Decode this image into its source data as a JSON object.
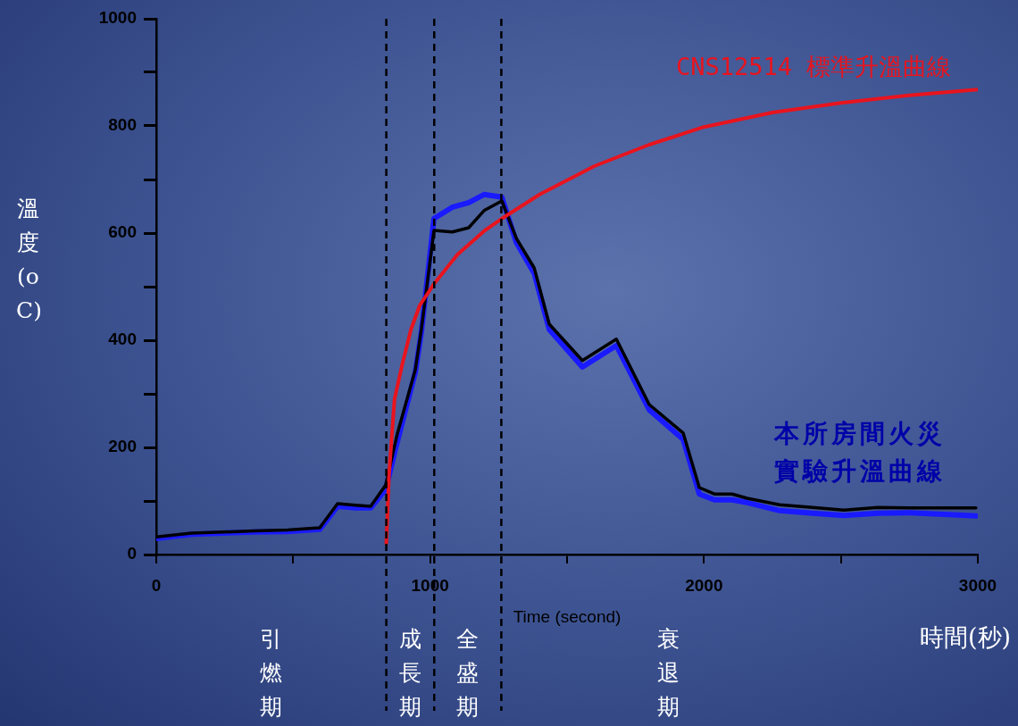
{
  "chart_data": {
    "type": "line",
    "xlabel": "Time (second)",
    "ylabel": "溫度 (oC)",
    "xlim": [
      0,
      3000
    ],
    "xticks": [
      0,
      {
        "value": 500,
        "label": null
      },
      1000,
      {
        "value": 1500,
        "label": null
      },
      2000,
      {
        "value": 2500,
        "label": null
      },
      3000
    ],
    "ylim": [
      0,
      1000
    ],
    "yticks": [
      0,
      {
        "value": 100,
        "label": null
      },
      200,
      {
        "value": 300,
        "label": null
      },
      400,
      {
        "value": 500,
        "label": null
      },
      600,
      {
        "value": 700,
        "label": null
      },
      800,
      {
        "value": 900,
        "label": null
      },
      1000
    ],
    "grid": false,
    "legend": false,
    "marker": "none",
    "line_style": "solid",
    "series": [
      {
        "name": "CNS12514 標準升溫曲線",
        "color": "#e8141e",
        "x": [
          840,
          850,
          870,
          897,
          930,
          962,
          1014,
          1100,
          1200,
          1262,
          1400,
          1600,
          1800,
          2000,
          2250,
          2500,
          2750,
          3000
        ],
        "values": [
          20,
          150,
          290,
          352,
          420,
          465,
          505,
          560,
          605,
          627,
          672,
          725,
          765,
          798,
          825,
          843,
          857,
          868
        ]
      },
      {
        "color": "#000000",
        "x": [
          0,
          130,
          245,
          360,
          480,
          597,
          662,
          727,
          783,
          838,
          880,
          946,
          968,
          1014,
          1080,
          1141,
          1197,
          1262,
          1315,
          1380,
          1435,
          1556,
          1680,
          1800,
          1924,
          1983,
          2038,
          2103,
          2158,
          2276,
          2397,
          2511,
          2635,
          2755,
          2876,
          2993
        ],
        "values": [
          33,
          40,
          42,
          44,
          46,
          50,
          95,
          92,
          90,
          130,
          225,
          345,
          420,
          605,
          602,
          610,
          642,
          660,
          590,
          535,
          430,
          362,
          402,
          280,
          227,
          125,
          113,
          113,
          105,
          93,
          88,
          83,
          88,
          87,
          87,
          87
        ]
      },
      {
        "name": "本所房間火災實驗升溫曲線",
        "color": "#1a1aff",
        "x": [
          0,
          130,
          245,
          360,
          480,
          597,
          662,
          727,
          783,
          838,
          880,
          946,
          968,
          1014,
          1080,
          1141,
          1197,
          1262,
          1315,
          1380,
          1435,
          1556,
          1680,
          1800,
          1924,
          1983,
          2038,
          2103,
          2158,
          2276,
          2397,
          2511,
          2635,
          2755,
          2876,
          2993
        ],
        "values": [
          30,
          38,
          40,
          42,
          43,
          47,
          90,
          87,
          87,
          122,
          210,
          340,
          415,
          627,
          648,
          657,
          672,
          667,
          582,
          525,
          420,
          350,
          390,
          270,
          215,
          113,
          102,
          102,
          97,
          82,
          77,
          73,
          77,
          78,
          75,
          72
        ]
      }
    ],
    "ref_lines": [
      {
        "axis": "x",
        "value": 840,
        "color": "#000000",
        "line_style": "dashed"
      },
      {
        "axis": "x",
        "value": 1015,
        "color": "#000000",
        "line_style": "dashed"
      },
      {
        "axis": "x",
        "value": 1260,
        "color": "#000000",
        "line_style": "dashed"
      }
    ],
    "annotations": [
      "引燃期",
      "成長期",
      "全盛期",
      "衰退期",
      "時間(秒)"
    ]
  }
}
